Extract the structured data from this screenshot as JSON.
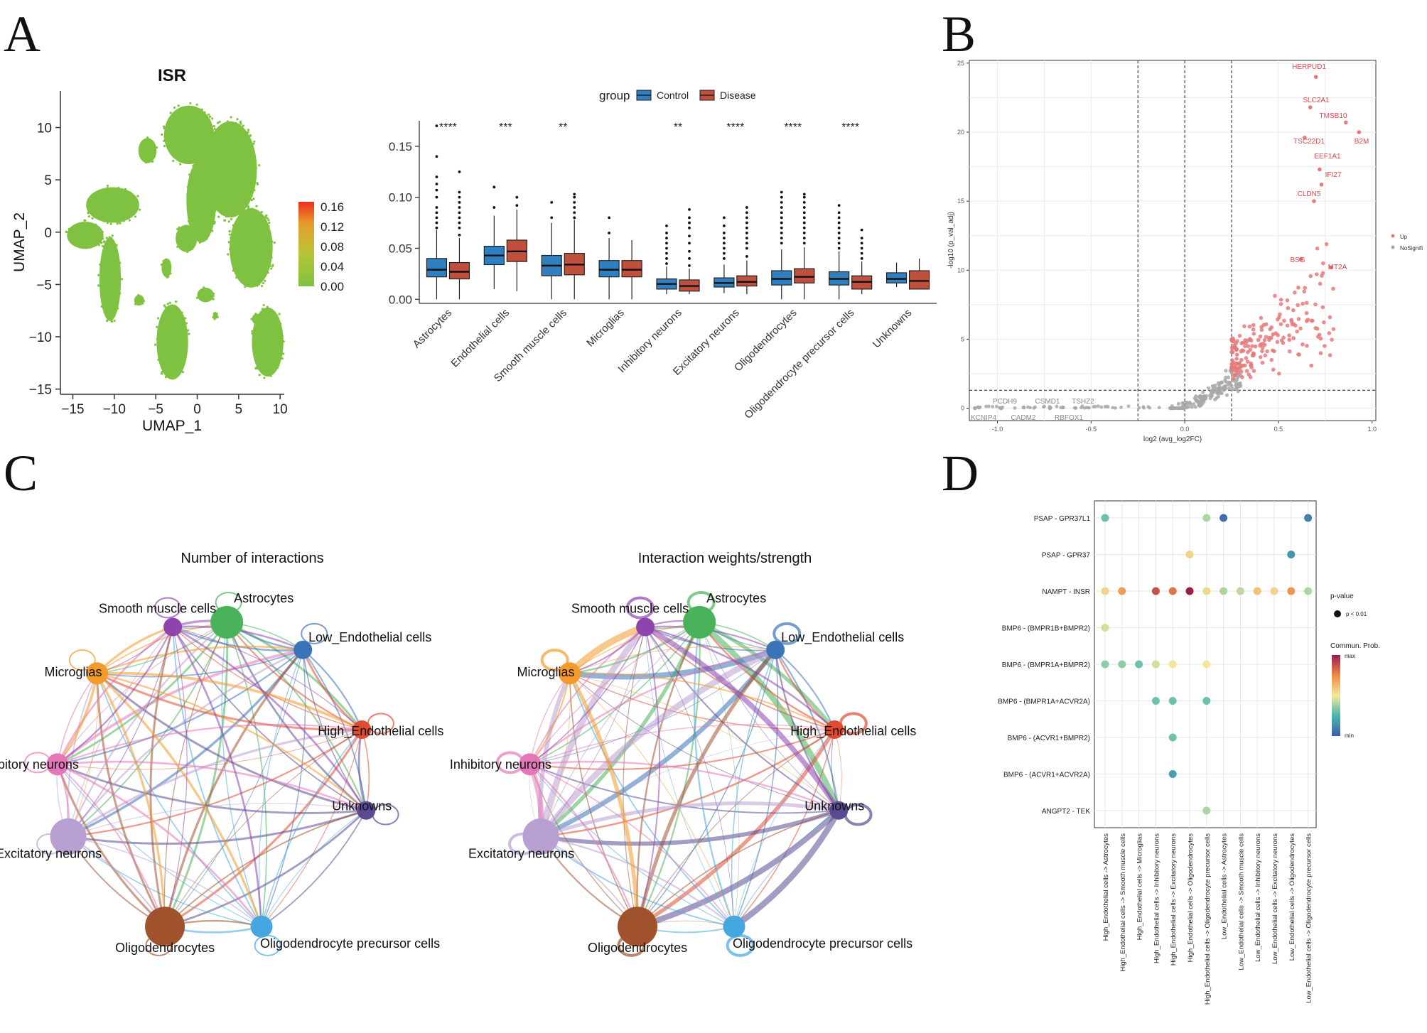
{
  "panels": {
    "A": "A",
    "B": "B",
    "C": "C",
    "D": "D"
  },
  "colors": {
    "control": "#2f7fc1",
    "disease": "#c0503d",
    "up": "#e8797a",
    "nosig": "#a8a8a8",
    "label_up": "#e0454a",
    "label_nosig": "#8a8a8a"
  },
  "chart_data": [
    {
      "id": "umap",
      "type": "scatter",
      "title": "ISR",
      "xlabel": "UMAP_1",
      "ylabel": "UMAP_2",
      "xlim": [
        -16.5,
        10.5
      ],
      "ylim": [
        -15.5,
        13.5
      ],
      "xticks": [
        -15,
        -10,
        -5,
        0,
        5,
        10
      ],
      "xtick_labels": [
        "−15",
        "−10",
        "−5",
        "0",
        "5",
        "10"
      ],
      "yticks": [
        10,
        5,
        0,
        -5,
        -10,
        -15
      ],
      "ytick_labels": [
        "10",
        "5",
        "0",
        "−5",
        "−10",
        "−15"
      ],
      "point_color": "#7fc241",
      "colorbar": {
        "range": [
          0,
          0.17
        ],
        "ticks": [
          0.16,
          0.12,
          0.08,
          0.04,
          0.0
        ],
        "tick_labels": [
          "0.16",
          "0.12",
          "0.08",
          "0.04",
          "0.00"
        ],
        "gradient": [
          "#7fc241",
          "#b9c436",
          "#e79a2c",
          "#ee2e1e"
        ]
      },
      "clusters": [
        {
          "cx": -1.0,
          "cy": 9.3,
          "rx": 3.0,
          "ry": 2.8
        },
        {
          "cx": -6.0,
          "cy": 7.8,
          "rx": 1.1,
          "ry": 1.2
        },
        {
          "cx": -10.2,
          "cy": 2.6,
          "rx": 3.2,
          "ry": 1.7
        },
        {
          "cx": -13.5,
          "cy": -0.3,
          "rx": 2.2,
          "ry": 1.3
        },
        {
          "cx": -10.5,
          "cy": -4.5,
          "rx": 1.3,
          "ry": 4.0
        },
        {
          "cx": 4.0,
          "cy": 6.0,
          "rx": 3.2,
          "ry": 4.6
        },
        {
          "cx": 0.5,
          "cy": 3.0,
          "rx": 1.8,
          "ry": 4.0
        },
        {
          "cx": 6.5,
          "cy": -1.5,
          "rx": 2.6,
          "ry": 3.8
        },
        {
          "cx": -1.3,
          "cy": -0.6,
          "rx": 1.3,
          "ry": 1.3
        },
        {
          "cx": -3.0,
          "cy": -10.5,
          "rx": 1.9,
          "ry": 3.6
        },
        {
          "cx": -7.0,
          "cy": -6.5,
          "rx": 0.6,
          "ry": 0.5
        },
        {
          "cx": -3.7,
          "cy": -3.4,
          "rx": 0.6,
          "ry": 0.9
        },
        {
          "cx": 1.0,
          "cy": -6.0,
          "rx": 1.0,
          "ry": 0.7
        },
        {
          "cx": 2.2,
          "cy": -8.0,
          "rx": 0.3,
          "ry": 0.3
        },
        {
          "cx": 8.5,
          "cy": -10.5,
          "rx": 1.9,
          "ry": 3.3
        },
        {
          "cx": 7.2,
          "cy": -8.3,
          "rx": 0.6,
          "ry": 0.5
        }
      ]
    },
    {
      "id": "boxplot",
      "type": "box",
      "ylim": [
        -0.004,
        0.175
      ],
      "yticks": [
        0.0,
        0.05,
        0.1,
        0.15
      ],
      "ytick_labels": [
        "0.00",
        "0.05",
        "0.10",
        "0.15"
      ],
      "legend": {
        "title": "group",
        "entries": [
          "Control",
          "Disease"
        ],
        "placement": "top"
      },
      "categories": [
        "Astrocytes",
        "Endothelial cells",
        "Smooth muscle cells",
        "Microglias",
        "Inhibitory neurons",
        "Excitatory neurons",
        "Oligodendrocytes",
        "Oligodendrocyte precursor cells",
        "Unknowns"
      ],
      "significance": [
        "****",
        "***",
        "**",
        "",
        "**",
        "****",
        "****",
        "****",
        ""
      ],
      "series": [
        {
          "name": "Control",
          "boxes": [
            [
              0.0,
              0.022,
              0.029,
              0.04,
              0.068
            ],
            [
              0.01,
              0.034,
              0.043,
              0.052,
              0.082
            ],
            [
              0.0,
              0.023,
              0.033,
              0.043,
              0.075
            ],
            [
              0.0,
              0.022,
              0.029,
              0.038,
              0.06
            ],
            [
              0.005,
              0.01,
              0.015,
              0.02,
              0.032
            ],
            [
              0.006,
              0.012,
              0.016,
              0.021,
              0.034
            ],
            [
              0.0,
              0.014,
              0.02,
              0.028,
              0.049
            ],
            [
              0.0,
              0.014,
              0.02,
              0.027,
              0.047
            ],
            [
              0.012,
              0.016,
              0.02,
              0.026,
              0.036
            ]
          ],
          "outliers": [
            [
              0.07,
              0.075,
              0.08,
              0.085,
              0.09,
              0.1,
              0.107,
              0.113,
              0.12,
              0.14,
              0.17
            ],
            [
              0.09,
              0.11
            ],
            [
              0.08,
              0.095
            ],
            [
              0.065,
              0.08
            ],
            [
              0.035,
              0.04,
              0.045,
              0.05,
              0.055,
              0.06,
              0.065,
              0.072
            ],
            [
              0.04,
              0.045,
              0.05,
              0.055,
              0.06,
              0.065,
              0.072,
              0.08
            ],
            [
              0.055,
              0.06,
              0.065,
              0.07,
              0.075,
              0.08,
              0.085,
              0.09,
              0.095,
              0.1,
              0.105
            ],
            [
              0.05,
              0.055,
              0.06,
              0.065,
              0.07,
              0.075,
              0.08,
              0.085,
              0.092
            ],
            []
          ]
        },
        {
          "name": "Disease",
          "boxes": [
            [
              0.0,
              0.02,
              0.027,
              0.036,
              0.06
            ],
            [
              0.008,
              0.037,
              0.047,
              0.058,
              0.088
            ],
            [
              0.0,
              0.024,
              0.034,
              0.045,
              0.078
            ],
            [
              0.0,
              0.022,
              0.029,
              0.038,
              0.058
            ],
            [
              0.005,
              0.008,
              0.013,
              0.019,
              0.03
            ],
            [
              0.005,
              0.013,
              0.017,
              0.023,
              0.038
            ],
            [
              0.0,
              0.016,
              0.022,
              0.03,
              0.051
            ],
            [
              0.005,
              0.01,
              0.017,
              0.023,
              0.037
            ],
            [
              0.01,
              0.01,
              0.018,
              0.028,
              0.04
            ]
          ],
          "outliers": [
            [
              0.063,
              0.07,
              0.075,
              0.08,
              0.085,
              0.09,
              0.095,
              0.1,
              0.105,
              0.125
            ],
            [
              0.092,
              0.1
            ],
            [
              0.08,
              0.085,
              0.09,
              0.095,
              0.1,
              0.103
            ],
            [],
            [
              0.033,
              0.04,
              0.047,
              0.055,
              0.062,
              0.07,
              0.075,
              0.08,
              0.088
            ],
            [
              0.042,
              0.05,
              0.055,
              0.06,
              0.065,
              0.07,
              0.075,
              0.08,
              0.085,
              0.09
            ],
            [
              0.055,
              0.06,
              0.065,
              0.07,
              0.075,
              0.08,
              0.085,
              0.09,
              0.095,
              0.1,
              0.103
            ],
            [
              0.04,
              0.045,
              0.05,
              0.055,
              0.06,
              0.068
            ],
            []
          ]
        }
      ]
    },
    {
      "id": "volcano",
      "type": "scatter",
      "xlabel": "log2 (avg_log2FC)",
      "ylabel": "-log10 (p_val_adj)",
      "xlim": [
        -1.15,
        1.02
      ],
      "ylim": [
        -0.9,
        25.2
      ],
      "xticks": [
        -1.0,
        -0.5,
        0.0,
        0.5,
        1.0
      ],
      "xtick_labels": [
        "-1.0",
        "-0.5",
        "0.0",
        "0.5",
        "1.0"
      ],
      "yticks": [
        0,
        5,
        10,
        15,
        20,
        25
      ],
      "ytick_labels": [
        "0",
        "5",
        "10",
        "15",
        "20",
        "25"
      ],
      "vlines": [
        -0.25,
        0.0,
        0.25
      ],
      "hline": 1.3,
      "legend": [
        "Up",
        "NoSignifi"
      ],
      "labeled_points": [
        {
          "gene": "HERPUD1",
          "x": 0.7,
          "y": 24.0,
          "group": "Up"
        },
        {
          "gene": "SLC2A1",
          "x": 0.67,
          "y": 21.8,
          "group": "Up"
        },
        {
          "gene": "TMSB10",
          "x": 0.86,
          "y": 20.7,
          "group": "Up"
        },
        {
          "gene": "TSC22D1",
          "x": 0.64,
          "y": 19.6,
          "group": "Up"
        },
        {
          "gene": "B2M",
          "x": 0.93,
          "y": 20.0,
          "group": "Up"
        },
        {
          "gene": "EEF1A1",
          "x": 0.72,
          "y": 17.3,
          "group": "Up"
        },
        {
          "gene": "IFI27",
          "x": 0.73,
          "y": 16.2,
          "group": "Up"
        },
        {
          "gene": "CLDN5",
          "x": 0.69,
          "y": 15.0,
          "group": "Up"
        },
        {
          "gene": "BSG",
          "x": 0.62,
          "y": 10.8,
          "group": "Up"
        },
        {
          "gene": "MT2A",
          "x": 0.78,
          "y": 10.2,
          "group": "Up"
        },
        {
          "gene": "PCDH9",
          "x": -1.1,
          "y": 0.05,
          "group": "NoSignifi"
        },
        {
          "gene": "KCNIP4",
          "x": -1.12,
          "y": 0.0,
          "group": "NoSignifi"
        },
        {
          "gene": "CSMD1",
          "x": -0.86,
          "y": 0.05,
          "group": "NoSignifi"
        },
        {
          "gene": "CADM2",
          "x": -0.98,
          "y": 0.0,
          "group": "NoSignifi"
        },
        {
          "gene": "TSHZ2",
          "x": -0.65,
          "y": 0.05,
          "group": "NoSignifi"
        },
        {
          "gene": "RBFOX1",
          "x": -0.72,
          "y": 0.0,
          "group": "NoSignifi"
        }
      ]
    },
    {
      "id": "network_count",
      "type": "network",
      "title": "Number of interactions",
      "nodes": [
        {
          "name": "Astrocytes",
          "color": "#49b25a",
          "size": 3
        },
        {
          "name": "Low_Endothelial cells",
          "color": "#3a73b8",
          "size": 1
        },
        {
          "name": "High_Endothelial cells",
          "color": "#e04a2f",
          "size": 1
        },
        {
          "name": "Unknowns",
          "color": "#5a4a92",
          "size": 1
        },
        {
          "name": "Oligodendrocyte precursor cells",
          "color": "#45a7df",
          "size": 1.5
        },
        {
          "name": "Oligodendrocytes",
          "color": "#a0522d",
          "size": 4
        },
        {
          "name": "Excitatory neurons",
          "color": "#b9a0d2",
          "size": 3.5
        },
        {
          "name": "Inhibitory neurons",
          "color": "#e377b8",
          "size": 1.5
        },
        {
          "name": "Microglias",
          "color": "#f39a2b",
          "size": 1.5
        },
        {
          "name": "Smooth muscle cells",
          "color": "#8e44ad",
          "size": 1
        }
      ]
    },
    {
      "id": "network_weight",
      "type": "network",
      "title": "Interaction weights/strength",
      "nodes": [
        {
          "name": "Astrocytes",
          "color": "#49b25a",
          "size": 3
        },
        {
          "name": "Low_Endothelial cells",
          "color": "#3a73b8",
          "size": 1
        },
        {
          "name": "High_Endothelial cells",
          "color": "#e04a2f",
          "size": 1
        },
        {
          "name": "Unknowns",
          "color": "#5a4a92",
          "size": 1
        },
        {
          "name": "Oligodendrocyte precursor cells",
          "color": "#45a7df",
          "size": 1.5
        },
        {
          "name": "Oligodendrocytes",
          "color": "#a0522d",
          "size": 4
        },
        {
          "name": "Excitatory neurons",
          "color": "#b9a0d2",
          "size": 3.5
        },
        {
          "name": "Inhibitory neurons",
          "color": "#e377b8",
          "size": 1.5
        },
        {
          "name": "Microglias",
          "color": "#f39a2b",
          "size": 1.5
        },
        {
          "name": "Smooth muscle cells",
          "color": "#8e44ad",
          "size": 1
        }
      ]
    },
    {
      "id": "dotplot",
      "type": "dot",
      "rows": [
        "PSAP - GPR37L1",
        "PSAP - GPR37",
        "NAMPT - INSR",
        "BMP6 - (BMPR1B+BMPR2)",
        "BMP6 - (BMPR1A+BMPR2)",
        "BMP6 - (BMPR1A+ACVR2A)",
        "BMP6 - (ACVR1+BMPR2)",
        "BMP6 - (ACVR1+ACVR2A)",
        "ANGPT2 - TEK"
      ],
      "columns": [
        "High_Endothelial cells -> Astrocytes",
        "High_Endothelial cells -> Smooth muscle cells",
        "High_Endothelial cells -> Microglias",
        "High_Endothelial cells -> Inhibitory neurons",
        "High_Endothelial cells -> Excitatory neurons",
        "High_Endothelial cells -> Oligodendrocytes",
        "High_Endothelial cells -> Oligodendrocyte precursor cells",
        "Low_Endothelial cells -> Astrocytes",
        "Low_Endothelial cells -> Smooth muscle cells",
        "Low_Endothelial cells -> Inhibitory neurons",
        "Low_Endothelial cells -> Excitatory neurons",
        "Low_Endothelial cells -> Oligodendrocytes",
        "Low_Endothelial cells -> Oligodendrocyte precursor cells"
      ],
      "legend": {
        "pvalue_title": "p-value",
        "pvalue_entry": "p < 0.01",
        "prob_title": "Commun. Prob.",
        "max_label": "max",
        "min_label": "min"
      },
      "points": [
        {
          "row": 0,
          "col": 0,
          "prob": 0.3
        },
        {
          "row": 0,
          "col": 6,
          "prob": 0.4
        },
        {
          "row": 0,
          "col": 7,
          "prob": 0.05
        },
        {
          "row": 0,
          "col": 12,
          "prob": 0.1
        },
        {
          "row": 1,
          "col": 5,
          "prob": 0.55
        },
        {
          "row": 1,
          "col": 11,
          "prob": 0.15
        },
        {
          "row": 2,
          "col": 0,
          "prob": 0.55
        },
        {
          "row": 2,
          "col": 1,
          "prob": 0.7
        },
        {
          "row": 2,
          "col": 3,
          "prob": 0.88
        },
        {
          "row": 2,
          "col": 4,
          "prob": 0.8
        },
        {
          "row": 2,
          "col": 5,
          "prob": 1.0
        },
        {
          "row": 2,
          "col": 6,
          "prob": 0.55
        },
        {
          "row": 2,
          "col": 7,
          "prob": 0.4
        },
        {
          "row": 2,
          "col": 8,
          "prob": 0.42
        },
        {
          "row": 2,
          "col": 9,
          "prob": 0.6
        },
        {
          "row": 2,
          "col": 10,
          "prob": 0.55
        },
        {
          "row": 2,
          "col": 11,
          "prob": 0.72
        },
        {
          "row": 2,
          "col": 12,
          "prob": 0.4
        },
        {
          "row": 3,
          "col": 0,
          "prob": 0.45
        },
        {
          "row": 4,
          "col": 0,
          "prob": 0.35
        },
        {
          "row": 4,
          "col": 1,
          "prob": 0.35
        },
        {
          "row": 4,
          "col": 2,
          "prob": 0.3
        },
        {
          "row": 4,
          "col": 3,
          "prob": 0.45
        },
        {
          "row": 4,
          "col": 4,
          "prob": 0.5
        },
        {
          "row": 4,
          "col": 6,
          "prob": 0.5
        },
        {
          "row": 5,
          "col": 3,
          "prob": 0.3
        },
        {
          "row": 5,
          "col": 4,
          "prob": 0.3
        },
        {
          "row": 5,
          "col": 6,
          "prob": 0.3
        },
        {
          "row": 6,
          "col": 4,
          "prob": 0.3
        },
        {
          "row": 7,
          "col": 4,
          "prob": 0.18
        },
        {
          "row": 8,
          "col": 6,
          "prob": 0.4
        }
      ]
    }
  ]
}
